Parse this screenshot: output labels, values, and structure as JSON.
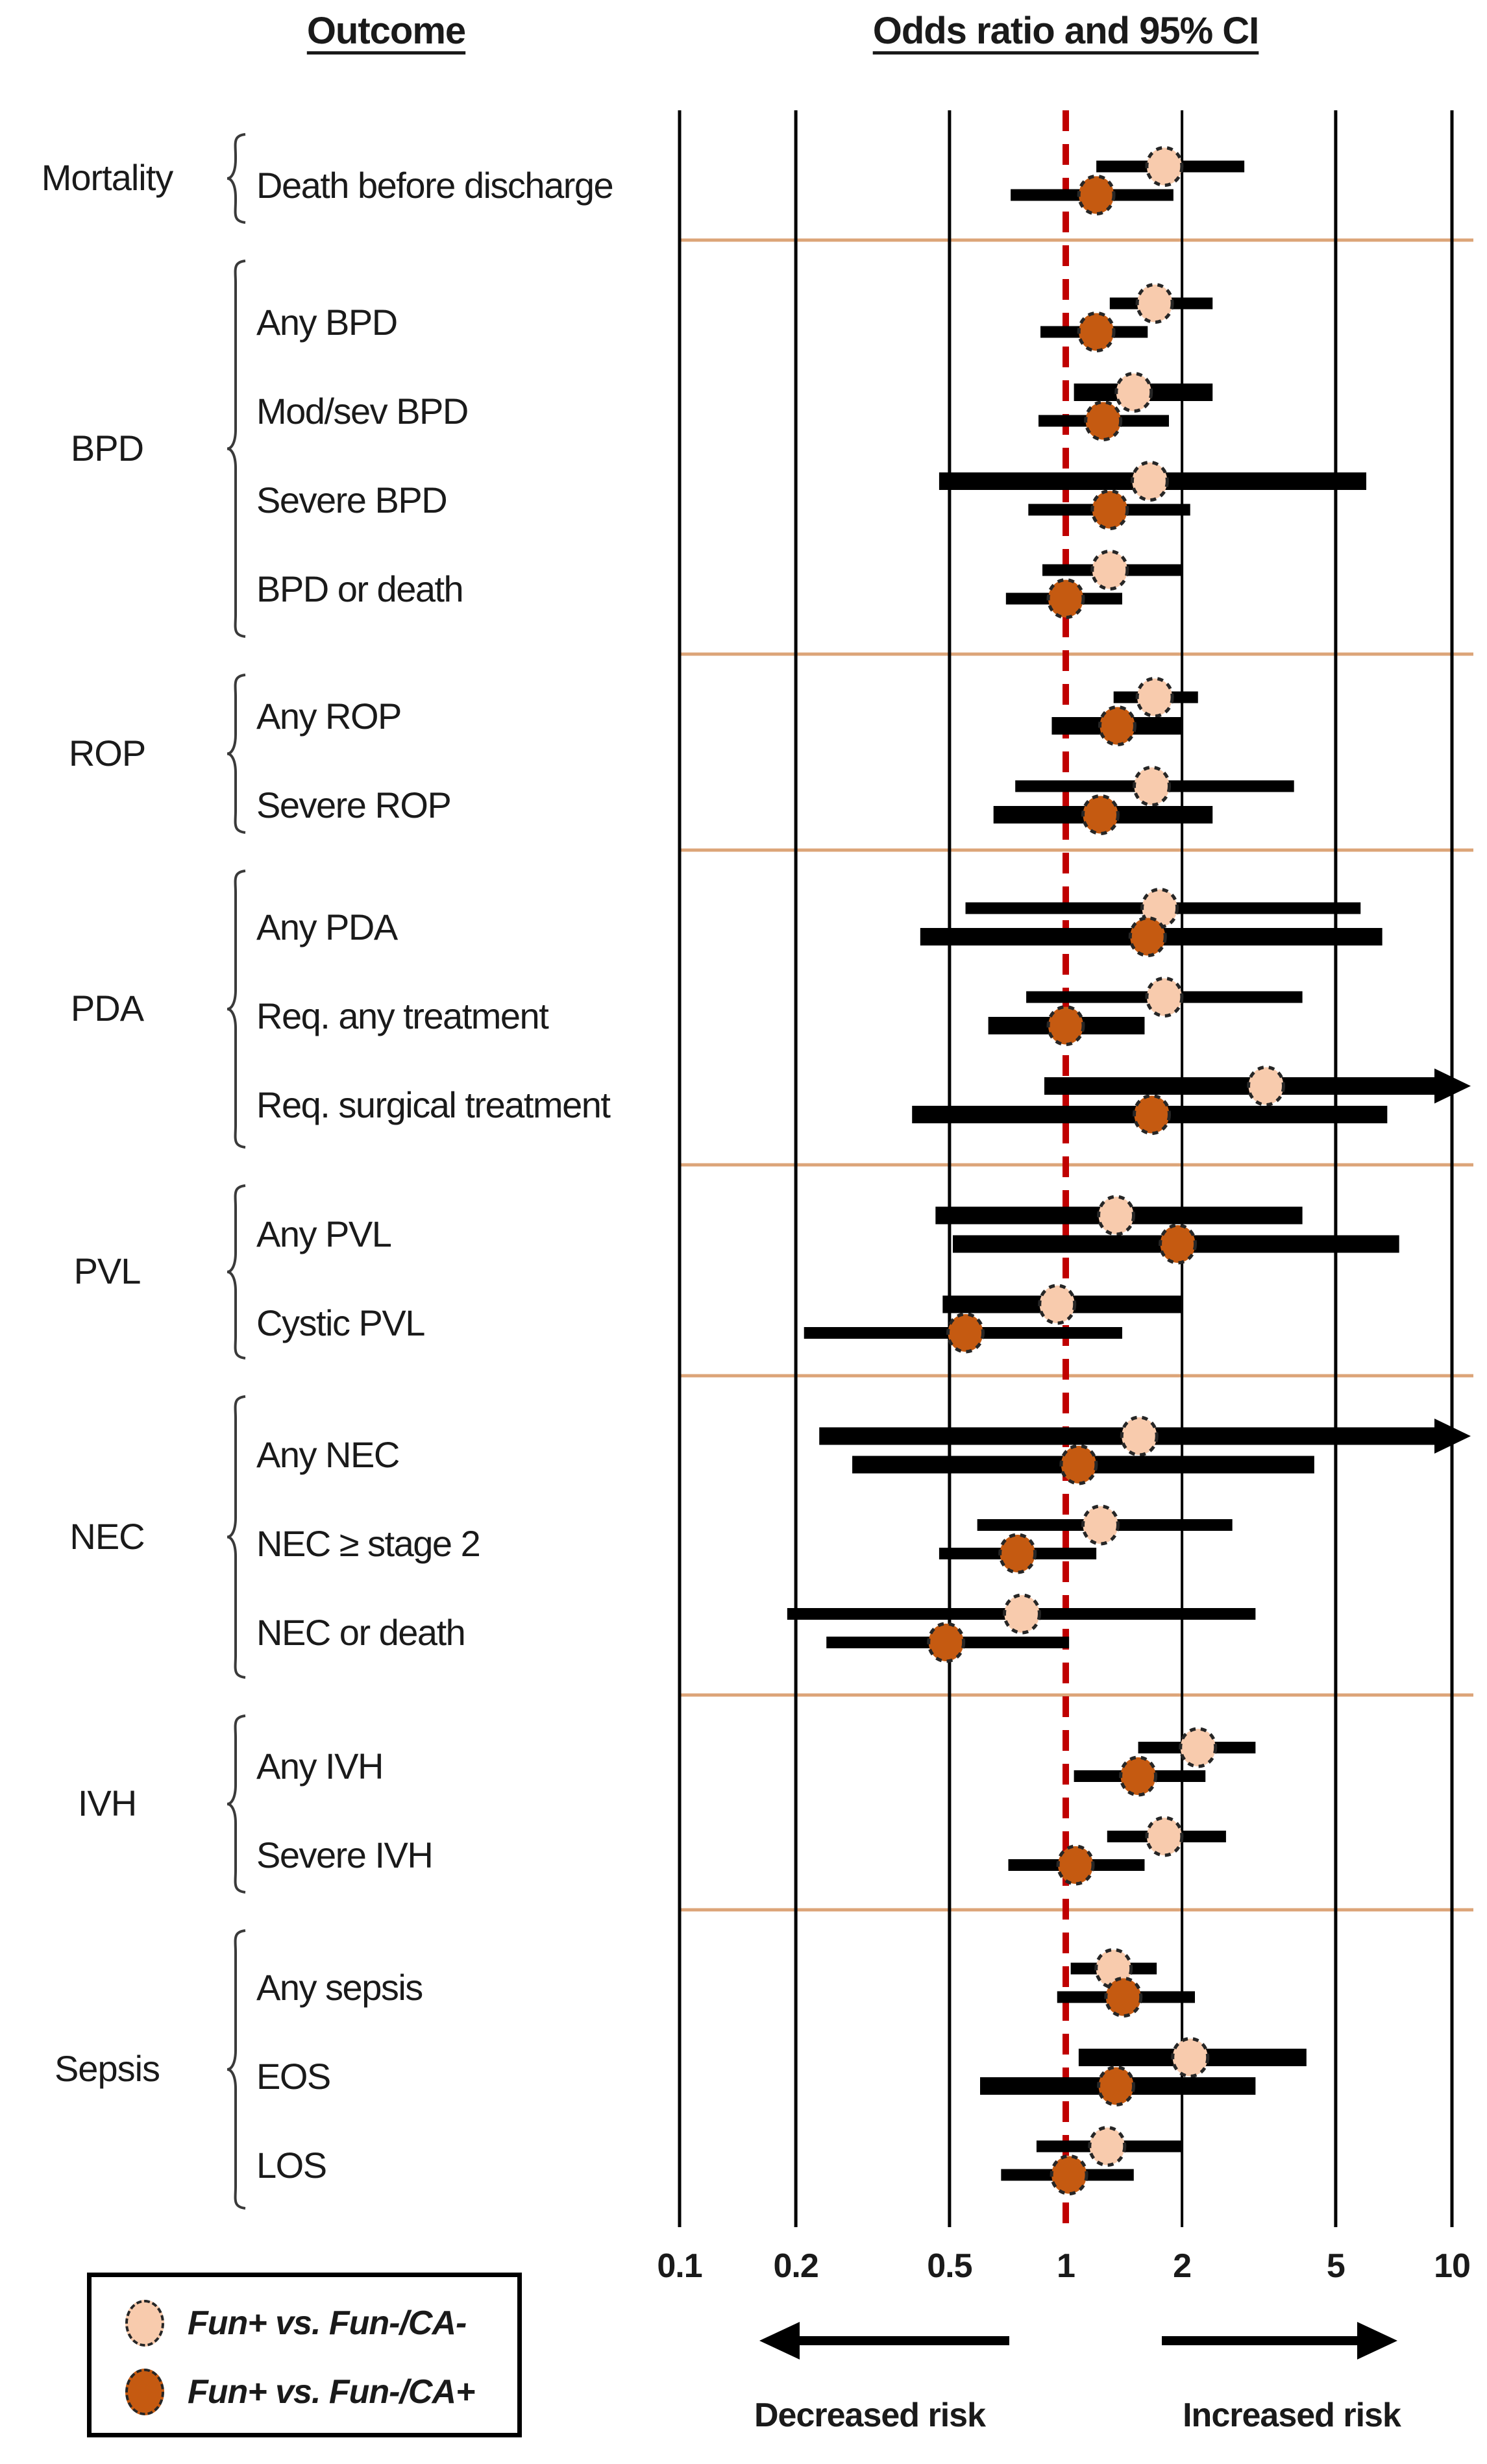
{
  "header": {
    "outcome_label": "Outcome",
    "or_label": "Odds ratio and 95% CI"
  },
  "footer": {
    "decreased_label": "Decreased risk",
    "increased_label": "Increased risk"
  },
  "legend": {
    "items": [
      {
        "label": "Fun+ vs. Fun-/CA-",
        "series": "light"
      },
      {
        "label": "Fun+ vs. Fun-/CA+",
        "series": "dark"
      }
    ]
  },
  "colors": {
    "light_fill": "#F8CBAD",
    "dark_fill": "#C55A11",
    "dot_stroke": "#262626",
    "ci_line": "#000000",
    "gridline": "#000000",
    "reference_line": "#C00000",
    "separator": "#DCA478",
    "brace": "#3a3a3a"
  },
  "chart_data": {
    "type": "forest",
    "title": "Odds ratio and 95% CI",
    "x_axis": {
      "scale": "log",
      "range": [
        0.1,
        10
      ],
      "ticks": [
        0.1,
        0.2,
        0.5,
        1,
        2,
        5,
        10
      ],
      "tick_labels": [
        "0.1",
        "0.2",
        "0.5",
        "1",
        "2",
        "5",
        "10"
      ],
      "reference_line": 1
    },
    "series_names": [
      "Fun+ vs. Fun-/CA-",
      "Fun+ vs. Fun-/CA+"
    ],
    "groups": [
      {
        "label": "Mortality",
        "rows": [
          {
            "label": "Death before discharge",
            "light": {
              "or": 1.8,
              "lo": 1.2,
              "hi": 2.9
            },
            "dark": {
              "or": 1.2,
              "lo": 0.72,
              "hi": 1.9
            }
          }
        ]
      },
      {
        "label": "BPD",
        "rows": [
          {
            "label": "Any BPD",
            "light": {
              "or": 1.7,
              "lo": 1.3,
              "hi": 2.4
            },
            "dark": {
              "or": 1.2,
              "lo": 0.86,
              "hi": 1.63
            }
          },
          {
            "label": "Mod/sev BPD",
            "light": {
              "or": 1.5,
              "lo": 1.05,
              "hi": 2.4,
              "thick": true
            },
            "dark": {
              "or": 1.25,
              "lo": 0.85,
              "hi": 1.85
            }
          },
          {
            "label": "Severe BPD",
            "light": {
              "or": 1.65,
              "lo": 0.47,
              "hi": 6.0,
              "thick": true
            },
            "dark": {
              "or": 1.3,
              "lo": 0.8,
              "hi": 2.1
            }
          },
          {
            "label": "BPD or death",
            "light": {
              "or": 1.3,
              "lo": 0.87,
              "hi": 2.0
            },
            "dark": {
              "or": 1.0,
              "lo": 0.7,
              "hi": 1.4
            }
          }
        ]
      },
      {
        "label": "ROP",
        "rows": [
          {
            "label": "Any ROP",
            "light": {
              "or": 1.7,
              "lo": 1.33,
              "hi": 2.2
            },
            "dark": {
              "or": 1.36,
              "lo": 0.92,
              "hi": 2.0,
              "thick": true
            }
          },
          {
            "label": "Severe ROP",
            "light": {
              "or": 1.67,
              "lo": 0.74,
              "hi": 3.9
            },
            "dark": {
              "or": 1.23,
              "lo": 0.65,
              "hi": 2.4,
              "thick": true
            }
          }
        ]
      },
      {
        "label": "PDA",
        "rows": [
          {
            "label": "Any PDA",
            "light": {
              "or": 1.75,
              "lo": 0.55,
              "hi": 5.8
            },
            "dark": {
              "or": 1.63,
              "lo": 0.42,
              "hi": 6.6,
              "thick": true
            }
          },
          {
            "label": "Req. any treatment",
            "light": {
              "or": 1.8,
              "lo": 0.79,
              "hi": 4.1
            },
            "dark": {
              "or": 1.0,
              "lo": 0.63,
              "hi": 1.6,
              "thick": true
            }
          },
          {
            "label": "Req. surgical treatment",
            "light": {
              "or": 3.3,
              "lo": 0.88,
              "hi": 10,
              "arrow_right": true,
              "thick": true
            },
            "dark": {
              "or": 1.67,
              "lo": 0.4,
              "hi": 6.8,
              "thick": true
            }
          }
        ]
      },
      {
        "label": "PVL",
        "rows": [
          {
            "label": "Any PVL",
            "light": {
              "or": 1.35,
              "lo": 0.46,
              "hi": 4.1,
              "thick": true
            },
            "dark": {
              "or": 1.95,
              "lo": 0.51,
              "hi": 7.3,
              "thick": true
            }
          },
          {
            "label": "Cystic PVL",
            "light": {
              "or": 0.95,
              "lo": 0.48,
              "hi": 2.0,
              "thick": true
            },
            "dark": {
              "or": 0.55,
              "lo": 0.21,
              "hi": 1.4
            }
          }
        ]
      },
      {
        "label": "NEC",
        "rows": [
          {
            "label": "Any NEC",
            "light": {
              "or": 1.55,
              "lo": 0.23,
              "hi": 10,
              "arrow_right": true,
              "thick": true
            },
            "dark": {
              "or": 1.08,
              "lo": 0.28,
              "hi": 4.4,
              "thick": true
            }
          },
          {
            "label": "NEC ≥ stage 2",
            "light": {
              "or": 1.23,
              "lo": 0.59,
              "hi": 2.7
            },
            "dark": {
              "or": 0.75,
              "lo": 0.47,
              "hi": 1.2
            }
          },
          {
            "label": "NEC or death",
            "light": {
              "or": 0.77,
              "lo": 0.19,
              "hi": 3.1
            },
            "dark": {
              "or": 0.49,
              "lo": 0.24,
              "hi": 1.02
            }
          }
        ]
      },
      {
        "label": "IVH",
        "rows": [
          {
            "label": "Any IVH",
            "light": {
              "or": 2.2,
              "lo": 1.54,
              "hi": 3.1
            },
            "dark": {
              "or": 1.54,
              "lo": 1.05,
              "hi": 2.3
            }
          },
          {
            "label": "Severe IVH",
            "light": {
              "or": 1.8,
              "lo": 1.28,
              "hi": 2.6
            },
            "dark": {
              "or": 1.06,
              "lo": 0.71,
              "hi": 1.6
            }
          }
        ]
      },
      {
        "label": "Sepsis",
        "rows": [
          {
            "label": "Any sepsis",
            "light": {
              "or": 1.33,
              "lo": 1.03,
              "hi": 1.72
            },
            "dark": {
              "or": 1.41,
              "lo": 0.95,
              "hi": 2.16
            }
          },
          {
            "label": "EOS",
            "light": {
              "or": 2.1,
              "lo": 1.08,
              "hi": 4.2,
              "thick": true
            },
            "dark": {
              "or": 1.35,
              "lo": 0.6,
              "hi": 3.1,
              "thick": true
            }
          },
          {
            "label": "LOS",
            "light": {
              "or": 1.28,
              "lo": 0.84,
              "hi": 2.0
            },
            "dark": {
              "or": 1.02,
              "lo": 0.68,
              "hi": 1.5
            }
          }
        ]
      }
    ]
  }
}
